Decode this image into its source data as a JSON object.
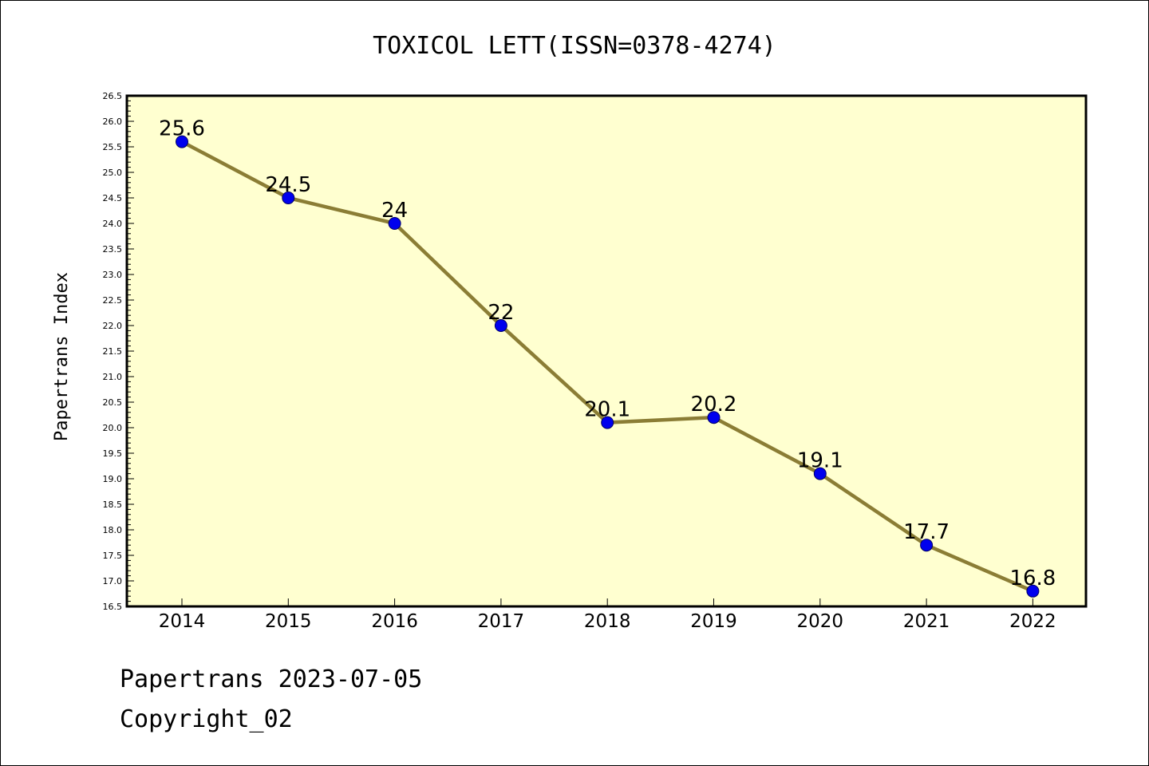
{
  "chart_data": {
    "type": "line",
    "title": "TOXICOL LETT(ISSN=0378-4274)",
    "xlabel": "",
    "ylabel": "Papertrans Index",
    "categories": [
      "2014",
      "2015",
      "2016",
      "2017",
      "2018",
      "2019",
      "2020",
      "2021",
      "2022"
    ],
    "values": [
      25.6,
      24.5,
      24,
      22,
      20.1,
      20.2,
      19.1,
      17.7,
      16.8
    ],
    "data_labels": [
      "25.6",
      "24.5",
      "24",
      "22",
      "20.1",
      "20.2",
      "19.1",
      "17.7",
      "16.8"
    ],
    "ylim": [
      16.5,
      26.5
    ],
    "yticks": [
      "16.5",
      "17.0",
      "17.5",
      "18.0",
      "18.5",
      "19.0",
      "19.5",
      "20.0",
      "20.5",
      "21.0",
      "21.5",
      "22.0",
      "22.5",
      "23.0",
      "23.5",
      "24.0",
      "24.5",
      "25.0",
      "25.5",
      "26.0",
      "26.5"
    ],
    "grid": false,
    "legend": "none",
    "colors": {
      "plot_background": "#ffffd0",
      "line": "#8b7d35",
      "marker": "#0000ee",
      "marker_edge": "#000066"
    }
  },
  "footer": {
    "line1": "Papertrans 2023-07-05",
    "line2": "Copyright_02"
  }
}
